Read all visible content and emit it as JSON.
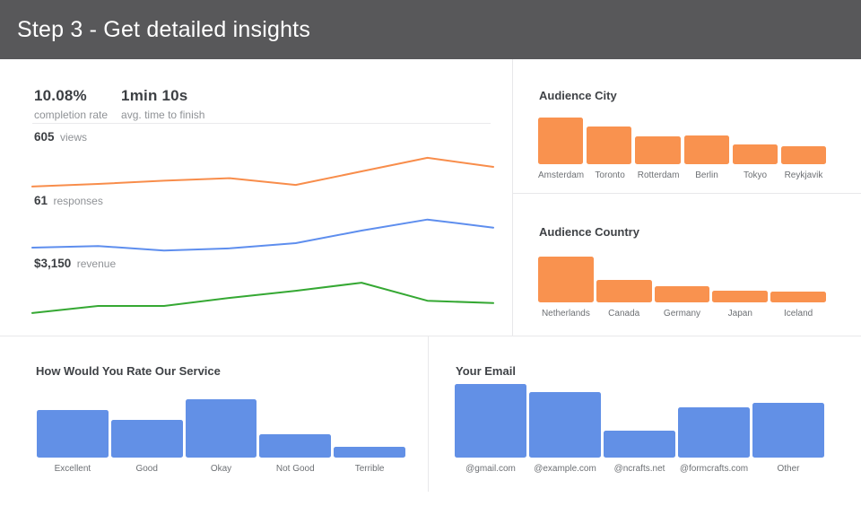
{
  "header": {
    "title": "Step 3 - Get detailed insights",
    "bg_color": "#58585a",
    "text_color": "#ffffff"
  },
  "overview": {
    "stats": [
      {
        "value": "10.08%",
        "label": "completion rate"
      },
      {
        "value": "1min 10s",
        "label": "avg. time to finish"
      }
    ]
  },
  "colors": {
    "orange": "#f9924f",
    "blue": "#6290e6",
    "green": "#35a833",
    "divider": "#e8e8ea"
  },
  "chart_data": [
    {
      "id": "views_trend",
      "type": "line",
      "metric_value": "605",
      "metric_label": "views",
      "color": "#f88d4b",
      "note": "no axes shown; values are relative trend heights (0-100)",
      "values_relative_pct": [
        3,
        11,
        21,
        29,
        8,
        50,
        92,
        64
      ]
    },
    {
      "id": "responses_trend",
      "type": "line",
      "metric_value": "61",
      "metric_label": "responses",
      "color": "#5e8eee",
      "note": "no axes shown; values are relative trend heights (0-100)",
      "values_relative_pct": [
        11,
        16,
        2,
        9,
        25,
        64,
        98,
        73
      ]
    },
    {
      "id": "revenue_trend",
      "type": "line",
      "metric_value": "$3,150",
      "metric_label": "revenue",
      "color": "#35a833",
      "note": "no axes shown; values are relative trend heights (0-100)",
      "values_relative_pct": [
        3,
        25,
        25,
        50,
        72,
        97,
        41,
        34
      ]
    },
    {
      "id": "audience_city",
      "type": "bar",
      "title": "Audience City",
      "color": "#f9924f",
      "categories": [
        "Amsterdam",
        "Toronto",
        "Rotterdam",
        "Berlin",
        "Tokyo",
        "Reykjavik"
      ],
      "note": "no y-axis shown; values are % of tallest bar",
      "values_relative_pct": [
        100,
        81,
        60,
        62,
        43,
        39
      ]
    },
    {
      "id": "audience_country",
      "type": "bar",
      "title": "Audience Country",
      "color": "#f9924f",
      "categories": [
        "Netherlands",
        "Canada",
        "Germany",
        "Japan",
        "Iceland"
      ],
      "note": "no y-axis shown; values are % of tallest bar",
      "values_relative_pct": [
        100,
        50,
        36,
        26,
        24
      ]
    },
    {
      "id": "service_rating",
      "type": "bar",
      "title": "How Would You Rate Our Service",
      "color": "#6290e6",
      "categories": [
        "Excellent",
        "Good",
        "Okay",
        "Not Good",
        "Terrible"
      ],
      "note": "no y-axis shown; values are % of tallest bar",
      "values_relative_pct": [
        82,
        65,
        100,
        40,
        19
      ]
    },
    {
      "id": "your_email",
      "type": "bar",
      "title": "Your Email",
      "color": "#6290e6",
      "categories": [
        "@gmail.com",
        "@example.com",
        "@ncrafts.net",
        "@formcrafts.com",
        "Other"
      ],
      "note": "no y-axis shown; values are % of tallest bar",
      "values_relative_pct": [
        100,
        89,
        37,
        68,
        75
      ]
    }
  ]
}
